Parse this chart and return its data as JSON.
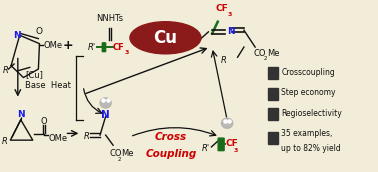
{
  "bg_color": "#f2edd8",
  "cu_circle_color": "#8B1A1A",
  "cu_text": "Cu",
  "cu_text_color": "#ffffff",
  "n_color": "#1a1aee",
  "o_color": "#cc0000",
  "cf3_color": "#cc0000",
  "green_color": "#1a6b1a",
  "black": "#111111",
  "dark": "#222222",
  "bullet_color": "#333333",
  "cross_coupling_color": "#cc0000",
  "bullet_items": [
    "Crosscoupling",
    "Step economy",
    "Regioselectivity",
    "35 examples,\nup to 82% yield"
  ]
}
